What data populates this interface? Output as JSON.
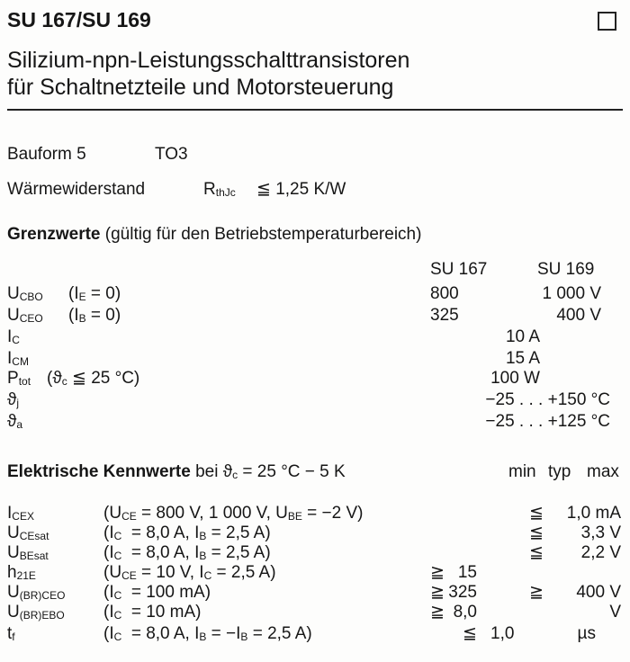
{
  "title": "SU 167/SU 169",
  "subtitle_1": "Silizium-npn-Leistungsschalttransistoren",
  "subtitle_2": "für Schaltnetzteile und Motorsteuerung",
  "bauform": "Bauform 5",
  "package": "TO3",
  "thermal": {
    "label": "Wärmewiderstand",
    "sym": "R",
    "sub": "thJc",
    "value": "≦ 1,25 K/W"
  },
  "limits": {
    "heading": "Grenzwerte",
    "heading_note": "(gültig für den Betriebstemperaturbereich)",
    "col1": "SU 167",
    "col2": "SU 169",
    "rows": [
      {
        "sym": "U",
        "sub": "CBO",
        "cond": "(I",
        "csub": "E",
        "cend": " = 0)",
        "v1": "800",
        "v2": "1 000 V"
      },
      {
        "sym": "U",
        "sub": "CEO",
        "cond": "(I",
        "csub": "B",
        "cend": " = 0)",
        "v1": "325",
        "v2": "400 V"
      },
      {
        "sym": "I",
        "sub": "C",
        "v": "10 A"
      },
      {
        "sym": "I",
        "sub": "CM",
        "v": "15 A"
      },
      {
        "sym": "P",
        "sub": "tot",
        "cond": "(ϑ",
        "csub": "c",
        "cend": " ≦ 25 °C)",
        "v": "100 W"
      },
      {
        "sym": "ϑ",
        "sub": "j",
        "v": "−25 . . . +150 °C"
      },
      {
        "sym": "ϑ",
        "sub": "a",
        "v": "−25 . . . +125 °C"
      }
    ]
  },
  "electrical": {
    "heading": "Elektrische Kennwerte",
    "cond": "bei ϑ",
    "cond_sub": "c",
    "cond_end": " = 25 °C − 5 K",
    "min": "min",
    "typ": "typ",
    "max": "max",
    "rows": [
      {
        "sym": "I",
        "sub": "CEX",
        "cond": "(U<sub>CE</sub> = 800 V, 1 000 V, U<sub>BE</sub> = −2 V)",
        "maxop": "≦",
        "max": "1,0 mA"
      },
      {
        "sym": "U",
        "sub": "CEsat",
        "cond": "(I<sub>C</sub> &nbsp;= 8,0 A, I<sub>B</sub> = 2,5 A)",
        "maxop": "≦",
        "max": "3,3 V"
      },
      {
        "sym": "U",
        "sub": "BEsat",
        "cond": "(I<sub>C</sub> &nbsp;= 8,0 A, I<sub>B</sub> = 2,5 A)",
        "maxop": "≦",
        "max": "2,2 V"
      },
      {
        "sym": "h",
        "sub": "21E",
        "cond": "(U<sub>CE</sub> = 10 V, I<sub>C</sub> = 2,5 A)",
        "minop": "≧",
        "min": "15"
      },
      {
        "sym": "U",
        "sub": "(BR)CEO",
        "cond": "(I<sub>C</sub> &nbsp;= 100 mA)",
        "minop": "≧",
        "min": "325",
        "maxop": "≧",
        "max": "400 V"
      },
      {
        "sym": "U",
        "sub": "(BR)EBO",
        "cond": "(I<sub>C</sub> &nbsp;= 10 mA)",
        "minop": "≧",
        "min": "8,0",
        "max": "V"
      },
      {
        "sym": "t",
        "sub": "f",
        "cond": "(I<sub>C</sub> &nbsp;= 8,0 A, I<sub>B</sub> = −I<sub>B</sub> = 2,5 A)",
        "typop": "≦",
        "typ": "1,0",
        "max": "µs"
      }
    ]
  }
}
